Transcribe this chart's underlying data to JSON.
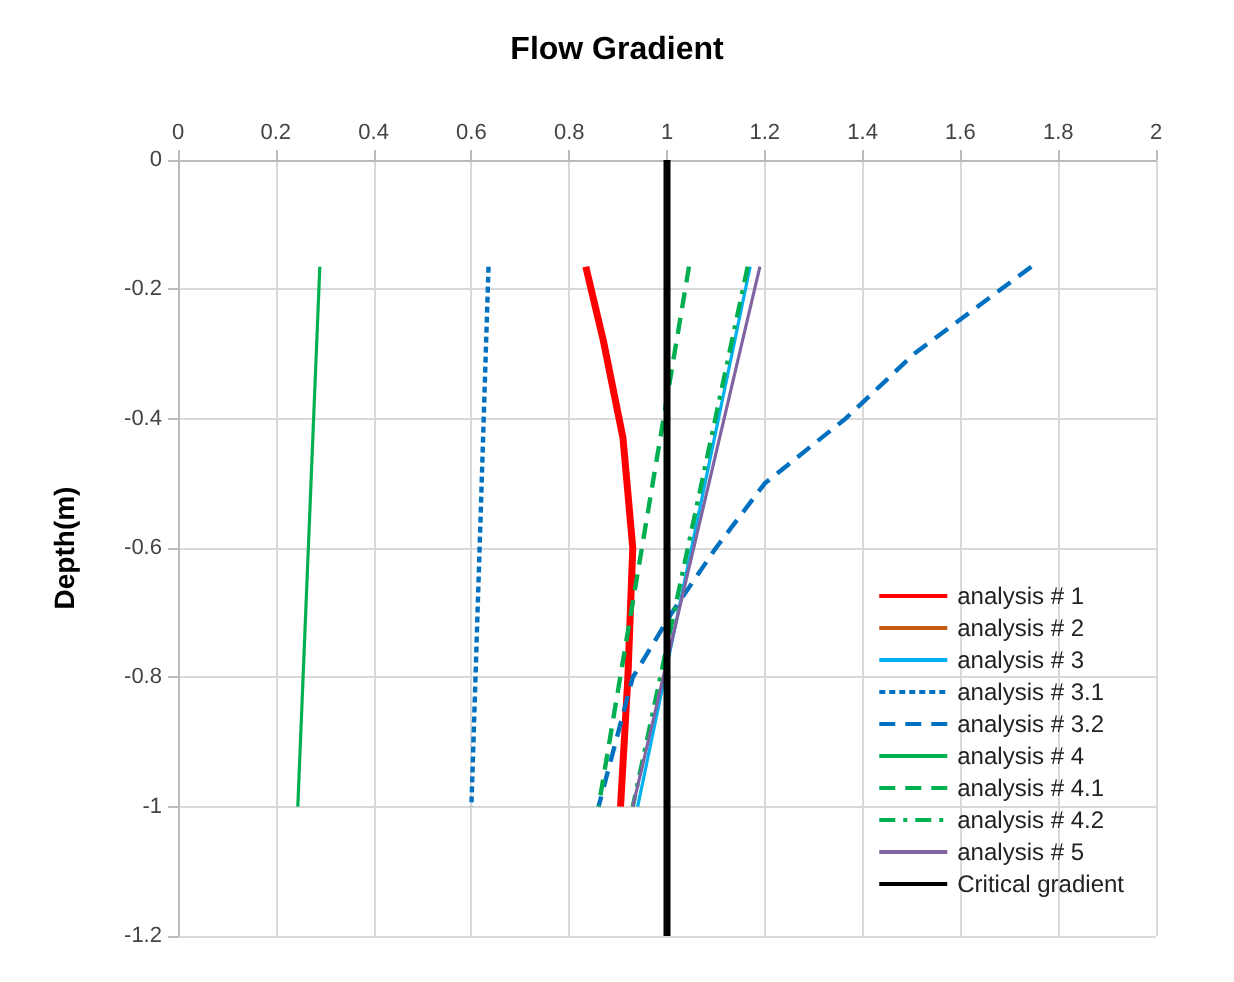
{
  "chart_data": {
    "type": "line",
    "title": "Flow Gradient",
    "ylabel": "Depth(m)",
    "xlim": [
      0,
      2
    ],
    "xticks": [
      0,
      0.2,
      0.4,
      0.6,
      0.8,
      1,
      1.2,
      1.4,
      1.6,
      1.8,
      2
    ],
    "ylim": [
      -1.2,
      0
    ],
    "yticks": [
      -1.2,
      -1,
      -0.8,
      -0.6,
      -0.4,
      -0.2,
      0
    ],
    "grid": true,
    "legend": "bottom right",
    "marker": "none",
    "series": [
      {
        "name": "analysis # 1",
        "color": "#ff0000",
        "line_style": "solid",
        "x": [
          0.834,
          0.87,
          0.91,
          0.93,
          0.92,
          0.905
        ],
        "values": [
          -0.165,
          -0.28,
          -0.43,
          -0.6,
          -0.8,
          -1
        ]
      },
      {
        "name": "analysis # 2",
        "color": "#c55a11",
        "line_style": "solid",
        "x": [
          null,
          null
        ],
        "values": [
          null,
          null
        ]
      },
      {
        "name": "analysis # 3",
        "color": "#00b0f0",
        "line_style": "solid",
        "x": [
          1.17,
          0.94
        ],
        "values": [
          -0.165,
          -1
        ]
      },
      {
        "name": "analysis # 3.1",
        "color": "#0070c0",
        "line_style": "dotted",
        "x": [
          0.635,
          0.6
        ],
        "values": [
          -0.165,
          -1
        ]
      },
      {
        "name": "analysis # 3.2",
        "color": "#0070c0",
        "line_style": "dashed",
        "x": [
          1.745,
          1.505,
          1.365,
          1.2,
          1.1,
          1.01,
          0.93,
          0.86
        ],
        "values": [
          -0.165,
          -0.3,
          -0.4,
          -0.5,
          -0.6,
          -0.7,
          -0.8,
          -1
        ]
      },
      {
        "name": "analysis # 4",
        "color": "#00b050",
        "line_style": "solid",
        "x": [
          0.29,
          0.245
        ],
        "values": [
          -0.165,
          -1
        ]
      },
      {
        "name": "analysis # 4.1",
        "color": "#00b050",
        "line_style": "dashed",
        "x": [
          1.045,
          0.86
        ],
        "values": [
          -0.165,
          -1
        ]
      },
      {
        "name": "analysis # 4.2",
        "color": "#00b050",
        "line_style": "dashdot",
        "x": [
          1.165,
          0.93
        ],
        "values": [
          -0.165,
          -1
        ]
      },
      {
        "name": "analysis # 5",
        "color": "#8064a2",
        "line_style": "solid",
        "x": [
          1.19,
          0.93
        ],
        "values": [
          -0.165,
          -1
        ]
      },
      {
        "name": "Critical gradient",
        "color": "#000000",
        "line_style": "solid",
        "x": [
          1,
          1
        ],
        "values": [
          0,
          -1.2
        ]
      }
    ]
  }
}
